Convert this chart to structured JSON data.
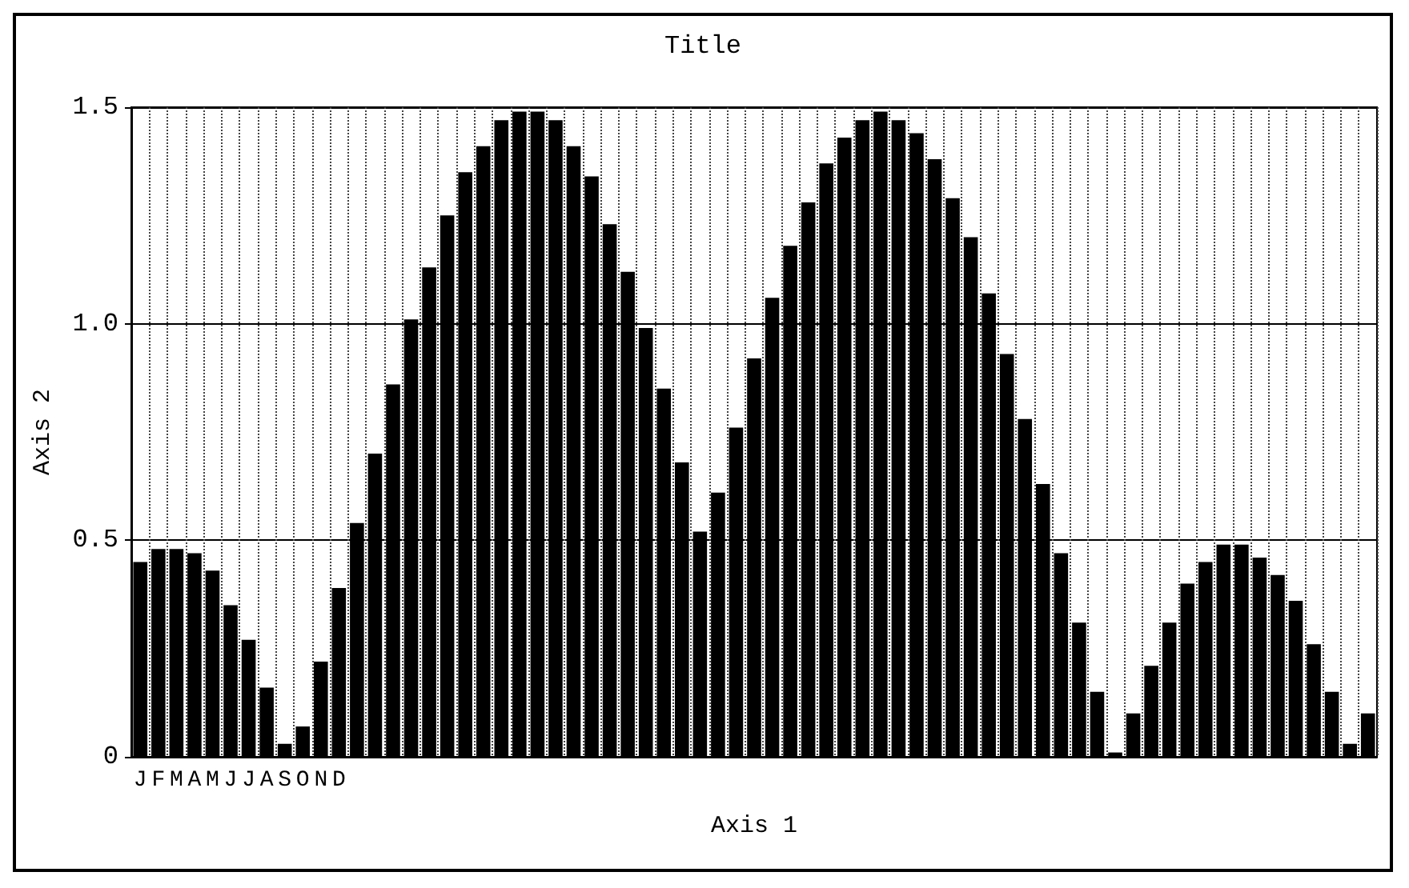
{
  "chart_data": {
    "type": "bar",
    "title": "Title",
    "xlabel": "Axis 1",
    "ylabel": "Axis 2",
    "categories": [
      "J",
      "F",
      "M",
      "A",
      "M",
      "J",
      "J",
      "A",
      "S",
      "O",
      "N",
      "D",
      null,
      null,
      null,
      null,
      null,
      null,
      null,
      null,
      null,
      null,
      null,
      null,
      null,
      null,
      null,
      null,
      null,
      null,
      null,
      null,
      null,
      null,
      null,
      null,
      null,
      null,
      null,
      null,
      null,
      null,
      null,
      null,
      null,
      null,
      null,
      null,
      null,
      null,
      null,
      null,
      null,
      null,
      null,
      null,
      null,
      null,
      null,
      null,
      null,
      null,
      null,
      null,
      null,
      null,
      null,
      null,
      null
    ],
    "values": [
      0.45,
      0.48,
      0.48,
      0.47,
      0.43,
      0.35,
      0.27,
      0.16,
      0.03,
      0.07,
      0.22,
      0.39,
      0.54,
      0.7,
      0.86,
      1.01,
      1.13,
      1.25,
      1.35,
      1.41,
      1.47,
      1.49,
      1.49,
      1.47,
      1.41,
      1.34,
      1.23,
      1.12,
      0.99,
      0.85,
      0.68,
      0.52,
      0.61,
      0.76,
      0.92,
      1.06,
      1.18,
      1.28,
      1.37,
      1.43,
      1.47,
      1.49,
      1.47,
      1.44,
      1.38,
      1.29,
      1.2,
      1.07,
      0.93,
      0.78,
      0.63,
      0.47,
      0.31,
      0.15,
      0.01,
      0.1,
      0.21,
      0.31,
      0.4,
      0.45,
      0.49,
      0.49,
      0.46,
      0.42,
      0.36,
      0.26,
      0.15,
      0.03,
      0.1
    ],
    "color": "#000000",
    "ylim": [
      0,
      1.5
    ],
    "yticks": [
      0,
      0.5,
      {
        "value": 1,
        "label": "1.0"
      },
      1.5
    ],
    "grid": true
  }
}
